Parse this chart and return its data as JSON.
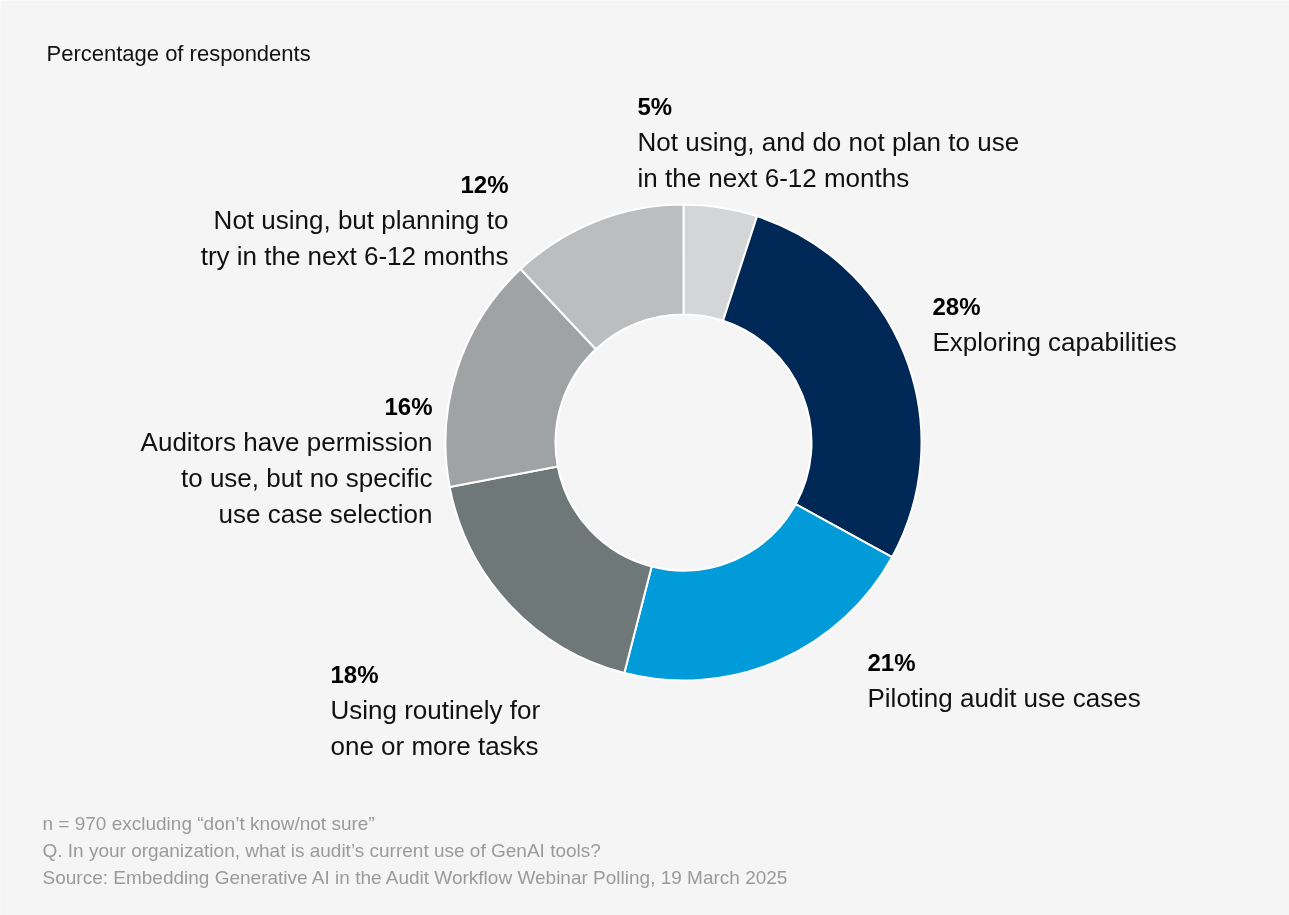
{
  "chart_data": {
    "type": "donut",
    "title": "Percentage of respondents",
    "categories": [
      "Not using, and do not plan to use\nin the next 6-12 months",
      "Exploring capabilities",
      "Piloting audit use cases",
      "Using routinely for\none or more tasks",
      "Auditors have permission\nto use, but no specific\nuse case selection",
      "Not using, but planning to\ntry in the next 6-12 months"
    ],
    "values": [
      5,
      28,
      21,
      18,
      16,
      12
    ],
    "value_labels": [
      "5%",
      "28%",
      "21%",
      "18%",
      "16%",
      "12%"
    ],
    "colors": [
      "#d4d5d6",
      "#002856",
      "#009bd8",
      "#6f7878",
      "#a0a3a3",
      "#bcbdbf"
    ],
    "legend": false,
    "annotations": [
      "n = 970 excluding “don’t know/not sure”",
      "Q. In your organization, what is audit’s current use of GenAI tools?",
      "Source: Embedding Generative AI in the Audit Workflow Webinar Polling, 19 March 2025"
    ]
  }
}
